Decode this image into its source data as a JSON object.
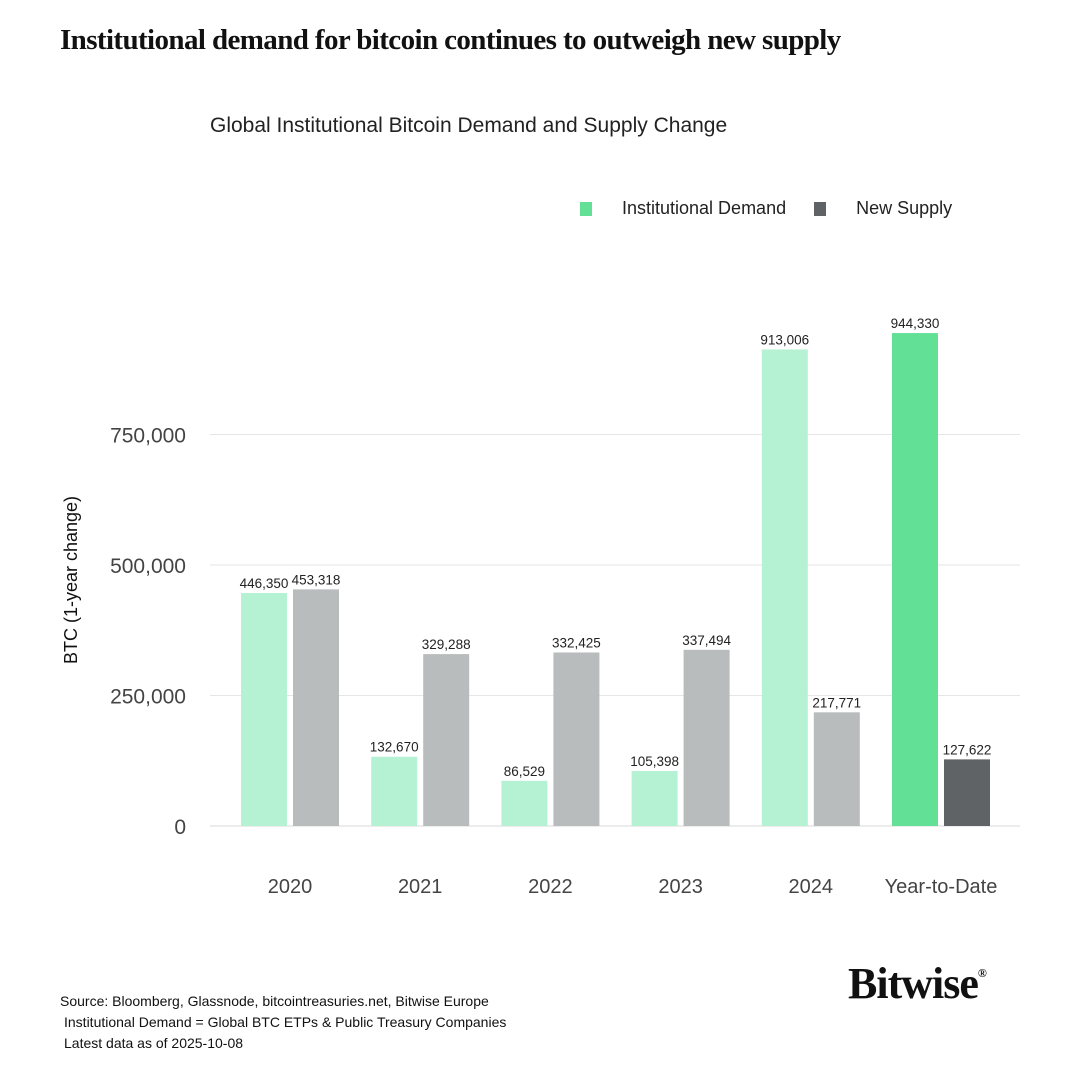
{
  "headline": "Institutional demand for bitcoin continues to outweigh new supply",
  "chart_data": {
    "type": "bar",
    "title": "Global Institutional Bitcoin Demand and Supply Change",
    "ylabel": "BTC (1-year change)",
    "xlabel": "",
    "categories": [
      "2020",
      "2021",
      "2022",
      "2023",
      "2024",
      "Year-to-Date"
    ],
    "series": [
      {
        "name": "Institutional Demand",
        "values": [
          446350,
          132670,
          86529,
          105398,
          913006,
          944330
        ],
        "color": "#b5f2d3",
        "highlight_color": "#62e096"
      },
      {
        "name": "New Supply",
        "values": [
          453318,
          329288,
          332425,
          337494,
          217771,
          127622
        ],
        "color": "#b8bcbd",
        "highlight_color": "#5f6366"
      }
    ],
    "data_labels": [
      [
        "446,350",
        "132,670",
        "86,529",
        "105,398",
        "913,006",
        "944,330"
      ],
      [
        "453,318",
        "329,288",
        "332,425",
        "337,494",
        "217,771",
        "127,622"
      ]
    ],
    "yticks": [
      0,
      250000,
      500000,
      750000
    ],
    "ytick_labels": [
      "0",
      "250,000",
      "500,000",
      "750,000"
    ],
    "ylim": [
      0,
      1000000
    ],
    "grid": true,
    "legend_placement": "top-right",
    "legend_colors": [
      "#62e096",
      "#5f6366"
    ]
  },
  "footer": {
    "source": "Source: Bloomberg, Glassnode, bitcointreasuries.net, Bitwise Europe",
    "note": "Institutional Demand = Global BTC ETPs & Public Treasury Companies",
    "date": "Latest data as of 2025-10-08"
  },
  "logo": "Bitwise"
}
